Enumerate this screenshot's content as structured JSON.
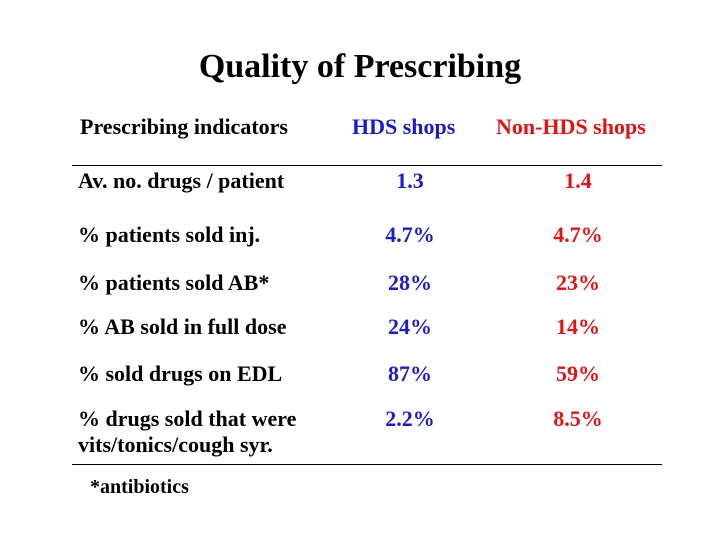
{
  "title": "Quality of Prescribing",
  "table": {
    "headers": [
      "Prescribing indicators",
      "HDS shops",
      "Non-HDS shops"
    ],
    "colors": {
      "hds": "#1c1cc4",
      "non_hds": "#e01414"
    },
    "rows": [
      {
        "label": "Av. no. drugs / patient",
        "hds": "1.3",
        "non_hds": "1.4"
      },
      {
        "label": "% patients sold inj.",
        "hds": "4.7%",
        "non_hds": "4.7%"
      },
      {
        "label": "% patients sold AB*",
        "hds": "28%",
        "non_hds": "23%"
      },
      {
        "label": "% AB sold in full dose",
        "hds": "24%",
        "non_hds": "14%"
      },
      {
        "label": "% sold drugs on EDL",
        "hds": "87%",
        "non_hds": "59%"
      },
      {
        "label_line1": "% drugs sold that were",
        "label_line2": "vits/tonics/cough syr.",
        "hds": "2.2%",
        "non_hds": "8.5%"
      }
    ]
  },
  "footnote": "*antibiotics"
}
